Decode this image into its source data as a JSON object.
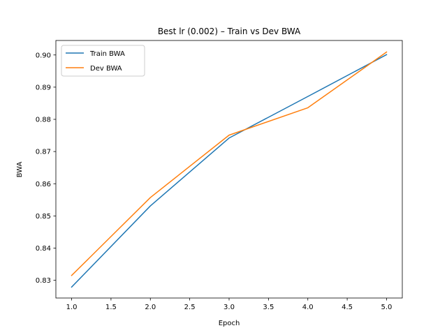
{
  "chart_data": {
    "type": "line",
    "title": "Best lr (0.002) – Train vs Dev BWA",
    "xlabel": "Epoch",
    "ylabel": "BWA",
    "xlim": [
      0.8,
      5.2
    ],
    "ylim": [
      0.8245,
      0.9045
    ],
    "xticks": [
      "1.0",
      "1.5",
      "2.0",
      "2.5",
      "3.0",
      "3.5",
      "4.0",
      "4.5",
      "5.0"
    ],
    "yticks": [
      "0.83",
      "0.84",
      "0.85",
      "0.86",
      "0.87",
      "0.88",
      "0.89",
      "0.90"
    ],
    "grid": false,
    "legend_position": "top-left",
    "x": [
      1,
      2,
      3,
      4,
      5
    ],
    "series": [
      {
        "name": "Train BWA",
        "color": "#1f77b4",
        "values": [
          0.8279,
          0.8531,
          0.8742,
          0.8871,
          0.9001
        ]
      },
      {
        "name": "Dev BWA",
        "color": "#ff7f0e",
        "values": [
          0.8315,
          0.8557,
          0.8751,
          0.8836,
          0.9009
        ]
      }
    ]
  }
}
